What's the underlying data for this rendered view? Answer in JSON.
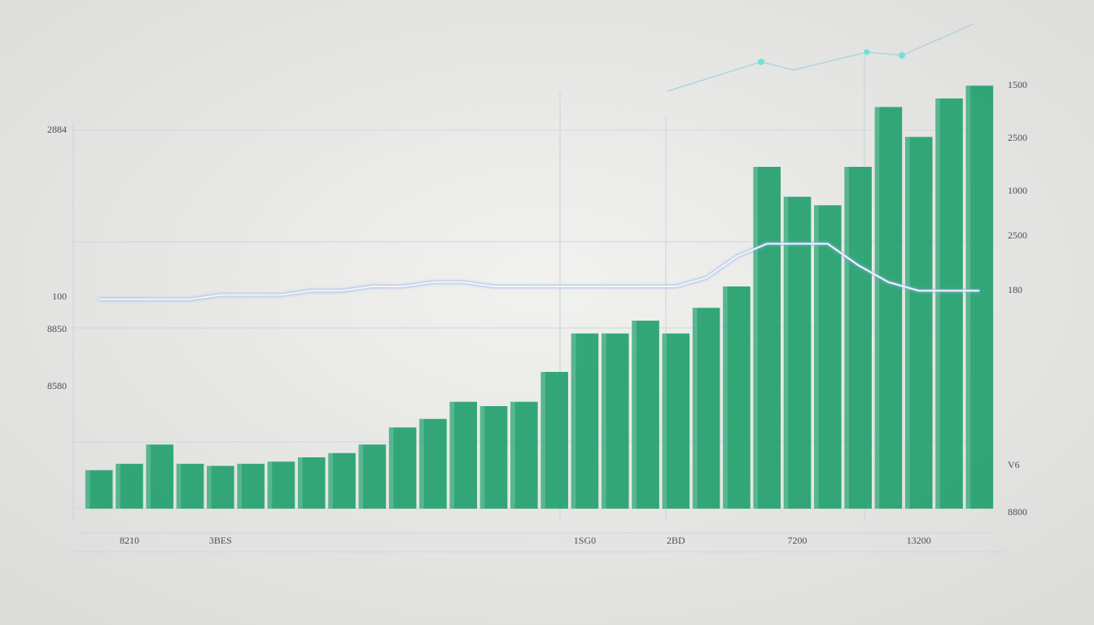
{
  "chart_data": {
    "type": "bar",
    "categories": [
      null,
      "8210",
      null,
      null,
      "3BES",
      null,
      null,
      null,
      null,
      null,
      null,
      null,
      null,
      null,
      null,
      null,
      "1SG0",
      null,
      null,
      "2BD",
      null,
      null,
      null,
      "7200",
      null,
      null,
      null,
      "13200",
      null,
      null
    ],
    "series": [
      {
        "type": "bar",
        "color": "#1f9f6c",
        "values": [
          9,
          10.5,
          15,
          10.5,
          10,
          10.5,
          11,
          12,
          13,
          15,
          19,
          21,
          25,
          24,
          25,
          32,
          41,
          41,
          44,
          41,
          47,
          52,
          80,
          73,
          71,
          80,
          94,
          87,
          96,
          99
        ]
      },
      {
        "type": "line",
        "color": "#f4f6fb",
        "values": [
          49,
          49,
          49,
          49,
          50,
          50,
          50,
          51,
          51,
          52,
          52,
          53,
          53,
          52,
          52,
          52,
          52,
          52,
          52,
          52,
          54,
          59,
          62,
          62,
          62,
          57,
          53,
          51,
          51,
          51
        ]
      }
    ],
    "ylim": [
      0,
      100
    ],
    "left_labels": [
      "2884",
      "100",
      "8850",
      "8580"
    ],
    "right_labels": [
      "1500",
      "2500",
      "1000",
      "2500",
      "180",
      "V6",
      "8800"
    ]
  }
}
